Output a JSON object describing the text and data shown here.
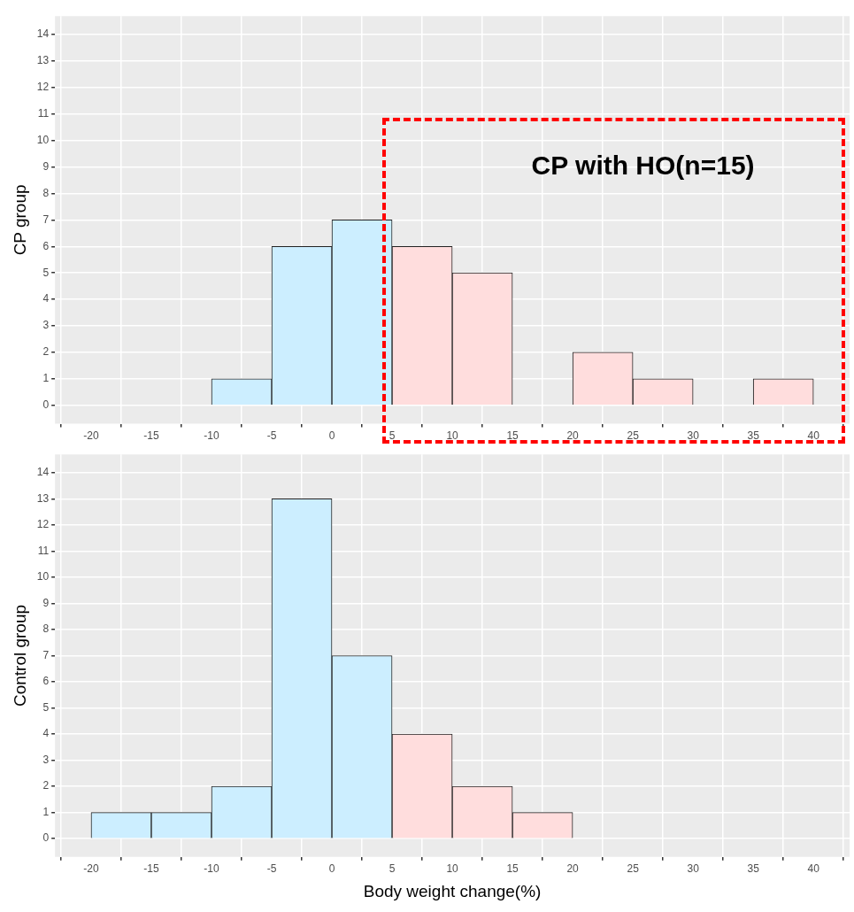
{
  "chart_data": [
    {
      "type": "histogram",
      "ylabel": "CP group",
      "bins": [
        -20,
        -15,
        -10,
        -5,
        0,
        5,
        10,
        15,
        20,
        25,
        30,
        35,
        40
      ],
      "values": [
        0,
        0,
        1,
        6,
        7,
        6,
        5,
        0,
        2,
        1,
        0,
        1
      ],
      "colors": [
        "#cceeff",
        "#cceeff",
        "#cceeff",
        "#cceeff",
        "#cceeff",
        "#ffdddd",
        "#ffdddd",
        "#ffdddd",
        "#ffdddd",
        "#ffdddd",
        "#ffdddd",
        "#ffdddd"
      ],
      "xlim": [
        -23,
        43
      ],
      "ylim": [
        -0.7,
        14.7
      ],
      "xticks": [
        -20,
        -15,
        -10,
        -5,
        0,
        5,
        10,
        15,
        20,
        25,
        30,
        35,
        40
      ],
      "yticks": [
        0,
        1,
        2,
        3,
        4,
        5,
        6,
        7,
        8,
        9,
        10,
        11,
        12,
        13,
        14
      ],
      "grid": true,
      "annotations": [
        "CP with HO(n=15)"
      ]
    },
    {
      "type": "histogram",
      "ylabel": "Control group",
      "xlabel": "Body weight change(%)",
      "bins": [
        -20,
        -15,
        -10,
        -5,
        0,
        5,
        10,
        15,
        20,
        25,
        30,
        35,
        40
      ],
      "values": [
        1,
        1,
        2,
        13,
        7,
        4,
        2,
        1,
        0,
        0,
        0,
        0
      ],
      "colors": [
        "#cceeff",
        "#cceeff",
        "#cceeff",
        "#cceeff",
        "#cceeff",
        "#ffdddd",
        "#ffdddd",
        "#ffdddd",
        "#ffdddd",
        "#ffdddd",
        "#ffdddd",
        "#ffdddd"
      ],
      "xlim": [
        -23,
        43
      ],
      "ylim": [
        -0.7,
        14.7
      ],
      "xticks": [
        -20,
        -15,
        -10,
        -5,
        0,
        5,
        10,
        15,
        20,
        25,
        30,
        35,
        40
      ],
      "yticks": [
        0,
        1,
        2,
        3,
        4,
        5,
        6,
        7,
        8,
        9,
        10,
        11,
        12,
        13,
        14
      ],
      "grid": true
    }
  ]
}
